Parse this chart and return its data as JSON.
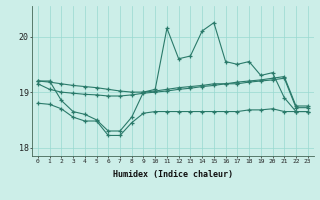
{
  "x": [
    0,
    1,
    2,
    3,
    4,
    5,
    6,
    7,
    8,
    9,
    10,
    11,
    12,
    13,
    14,
    15,
    16,
    17,
    18,
    19,
    20,
    21,
    22,
    23
  ],
  "y_main": [
    19.2,
    19.2,
    18.85,
    18.65,
    18.6,
    18.5,
    18.3,
    18.3,
    18.55,
    19.0,
    19.05,
    20.15,
    19.6,
    19.65,
    20.1,
    20.25,
    19.55,
    19.5,
    19.55,
    19.3,
    19.35,
    18.9,
    18.65,
    18.65
  ],
  "y_line2": [
    19.2,
    19.18,
    19.15,
    19.12,
    19.1,
    19.08,
    19.05,
    19.02,
    19.0,
    19.0,
    19.02,
    19.05,
    19.08,
    19.1,
    19.12,
    19.15,
    19.15,
    19.18,
    19.2,
    19.22,
    19.25,
    19.28,
    18.75,
    18.75
  ],
  "y_line3": [
    19.15,
    19.05,
    19.0,
    18.98,
    18.96,
    18.95,
    18.93,
    18.93,
    18.95,
    18.98,
    19.0,
    19.02,
    19.05,
    19.07,
    19.1,
    19.12,
    19.15,
    19.15,
    19.18,
    19.2,
    19.22,
    19.25,
    18.72,
    18.72
  ],
  "y_low": [
    18.8,
    18.78,
    18.7,
    18.55,
    18.48,
    18.48,
    18.22,
    18.22,
    18.45,
    18.62,
    18.65,
    18.65,
    18.65,
    18.65,
    18.65,
    18.65,
    18.65,
    18.65,
    18.68,
    18.68,
    18.7,
    18.65,
    18.65,
    18.65
  ],
  "color": "#2a7a6a",
  "bg_color": "#cceee8",
  "grid_color": "#99d9d0",
  "xlabel": "Humidex (Indice chaleur)",
  "ylim": [
    17.85,
    20.55
  ],
  "yticks": [
    18,
    19,
    20
  ],
  "xlim": [
    -0.5,
    23.5
  ]
}
